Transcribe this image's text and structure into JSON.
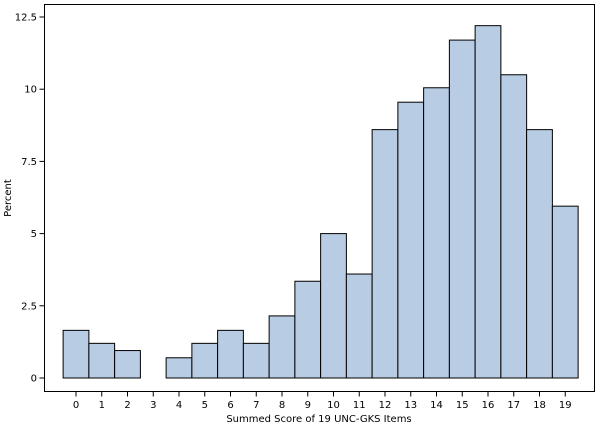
{
  "chart_data": {
    "type": "bar",
    "xlabel": "Summed Score of 19 UNC-GKS Items",
    "ylabel": "Percent",
    "ylim": [
      0,
      12.5
    ],
    "yticks": [
      "0",
      "2.5",
      "5",
      "7.5",
      "10",
      "12.5"
    ],
    "ytick_values": [
      0,
      2.5,
      5,
      7.5,
      10,
      12.5
    ],
    "categories": [
      "0",
      "1",
      "2",
      "3",
      "4",
      "5",
      "6",
      "7",
      "8",
      "9",
      "10",
      "11",
      "12",
      "13",
      "14",
      "15",
      "16",
      "17",
      "18",
      "19"
    ],
    "values": [
      1.65,
      1.2,
      0.95,
      0,
      0.7,
      1.2,
      1.65,
      1.2,
      2.15,
      3.35,
      5.0,
      3.6,
      8.6,
      9.55,
      10.05,
      11.7,
      12.2,
      10.5,
      8.6,
      5.95
    ],
    "bar_color": "#b8cce4",
    "grid": false,
    "legend": "none"
  }
}
